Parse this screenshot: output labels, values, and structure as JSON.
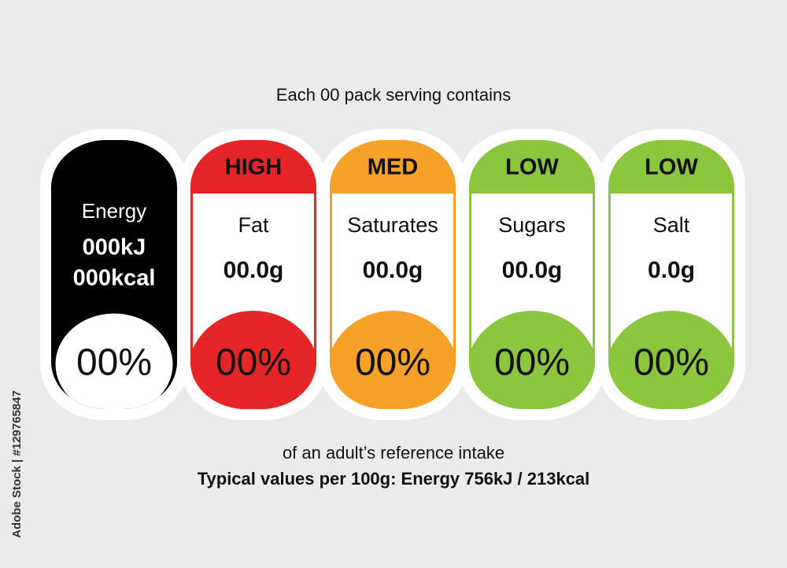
{
  "header": {
    "title": "Each 00 pack serving contains"
  },
  "items": [
    {
      "name": "Energy",
      "amount": "000kJ",
      "amount2": "000kcal",
      "percent": "00%",
      "color": "#000000"
    },
    {
      "level": "HIGH",
      "name": "Fat",
      "amount": "00.0g",
      "percent": "00%",
      "color": "#e52526"
    },
    {
      "level": "MED",
      "name": "Saturates",
      "amount": "00.0g",
      "percent": "00%",
      "color": "#f7a128"
    },
    {
      "level": "LOW",
      "name": "Sugars",
      "amount": "00.0g",
      "percent": "00%",
      "color": "#8cc63e"
    },
    {
      "level": "LOW",
      "name": "Salt",
      "amount": "0.0g",
      "percent": "00%",
      "color": "#8cc63e"
    }
  ],
  "footer": {
    "note": "of an adult’s reference intake",
    "typical": "Typical values per 100g: Energy 756kJ / 213kcal"
  },
  "watermark": "Adobe Stock | #129765847"
}
